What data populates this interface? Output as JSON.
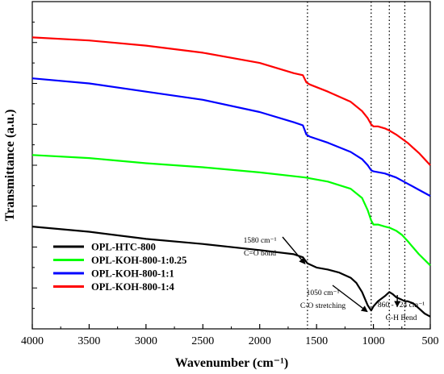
{
  "chart_data": {
    "type": "line",
    "xlabel": "Wavenumber (cm⁻¹)",
    "ylabel": "Transmittance (a.u.)",
    "xlim": [
      4000,
      500
    ],
    "x_ticks": [
      4000,
      3500,
      3000,
      2500,
      2000,
      1500,
      1000,
      500
    ],
    "x_reversed": true,
    "y_ticks_labeled": false,
    "grid": false,
    "legend_position": "lower-left",
    "series": [
      {
        "name": "OPL-HTC-800",
        "color": "#000000",
        "points": [
          [
            4000,
            10.0
          ],
          [
            3500,
            9.5
          ],
          [
            3000,
            8.8
          ],
          [
            2500,
            8.3
          ],
          [
            2000,
            7.7
          ],
          [
            1700,
            7.3
          ],
          [
            1620,
            7.0
          ],
          [
            1580,
            6.4
          ],
          [
            1500,
            6.0
          ],
          [
            1400,
            5.8
          ],
          [
            1300,
            5.5
          ],
          [
            1200,
            5.0
          ],
          [
            1150,
            4.5
          ],
          [
            1100,
            3.6
          ],
          [
            1050,
            2.3
          ],
          [
            1020,
            1.8
          ],
          [
            1000,
            2.2
          ],
          [
            960,
            2.7
          ],
          [
            900,
            3.2
          ],
          [
            860,
            3.6
          ],
          [
            830,
            3.4
          ],
          [
            800,
            3.1
          ],
          [
            760,
            2.9
          ],
          [
            724,
            2.7
          ],
          [
            700,
            2.7
          ],
          [
            650,
            2.5
          ],
          [
            600,
            2.0
          ],
          [
            550,
            1.5
          ],
          [
            500,
            1.2
          ]
        ]
      },
      {
        "name": "OPL-KOH-800-1:0.25",
        "color": "#00ff00",
        "points": [
          [
            4000,
            17.0
          ],
          [
            3500,
            16.7
          ],
          [
            3000,
            16.2
          ],
          [
            2500,
            15.8
          ],
          [
            2000,
            15.3
          ],
          [
            1600,
            14.8
          ],
          [
            1400,
            14.4
          ],
          [
            1200,
            13.7
          ],
          [
            1100,
            12.8
          ],
          [
            1050,
            11.6
          ],
          [
            1020,
            10.6
          ],
          [
            1000,
            10.2
          ],
          [
            960,
            10.2
          ],
          [
            900,
            10.0
          ],
          [
            860,
            9.9
          ],
          [
            800,
            9.6
          ],
          [
            750,
            9.2
          ],
          [
            700,
            8.6
          ],
          [
            600,
            7.3
          ],
          [
            500,
            6.2
          ]
        ]
      },
      {
        "name": "OPL-KOH-800-1:1",
        "color": "#0000ff",
        "points": [
          [
            4000,
            24.5
          ],
          [
            3500,
            24.0
          ],
          [
            3000,
            23.2
          ],
          [
            2500,
            22.4
          ],
          [
            2000,
            21.2
          ],
          [
            1700,
            20.2
          ],
          [
            1620,
            19.9
          ],
          [
            1590,
            19.0
          ],
          [
            1560,
            18.8
          ],
          [
            1400,
            18.2
          ],
          [
            1200,
            17.3
          ],
          [
            1100,
            16.6
          ],
          [
            1050,
            16.0
          ],
          [
            1020,
            15.5
          ],
          [
            1000,
            15.4
          ],
          [
            900,
            15.2
          ],
          [
            800,
            14.8
          ],
          [
            700,
            14.2
          ],
          [
            600,
            13.6
          ],
          [
            500,
            13.0
          ]
        ]
      },
      {
        "name": "OPL-KOH-800-1:4",
        "color": "#ff0000",
        "points": [
          [
            4000,
            28.5
          ],
          [
            3500,
            28.2
          ],
          [
            3000,
            27.7
          ],
          [
            2500,
            27.0
          ],
          [
            2000,
            26.0
          ],
          [
            1700,
            25.0
          ],
          [
            1620,
            24.8
          ],
          [
            1590,
            24.1
          ],
          [
            1560,
            23.9
          ],
          [
            1400,
            23.2
          ],
          [
            1200,
            22.2
          ],
          [
            1100,
            21.3
          ],
          [
            1050,
            20.6
          ],
          [
            1020,
            20.0
          ],
          [
            1000,
            19.8
          ],
          [
            960,
            19.8
          ],
          [
            900,
            19.6
          ],
          [
            860,
            19.4
          ],
          [
            800,
            19.0
          ],
          [
            700,
            18.2
          ],
          [
            600,
            17.2
          ],
          [
            500,
            16.0
          ]
        ]
      }
    ],
    "reference_lines_x": [
      1580,
      1020,
      860,
      724
    ],
    "annotations": [
      {
        "lines": [
          "1580  cm⁻¹",
          "C=O bond"
        ],
        "target_x": 1580
      },
      {
        "lines": [
          "1050 cm⁻¹",
          "C-O stretching"
        ],
        "target_x": 1050
      },
      {
        "lines": [
          "860 - 724  cm⁻¹",
          "C-H Bend"
        ],
        "target_x": 790
      }
    ]
  }
}
